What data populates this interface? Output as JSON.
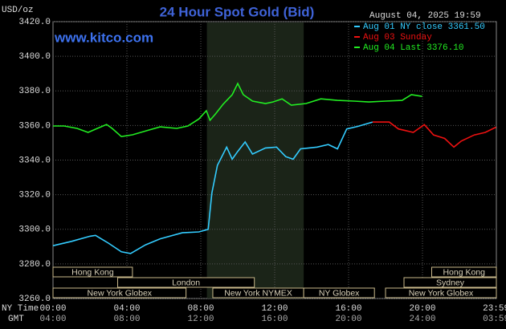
{
  "chart_data": {
    "type": "line",
    "title": "24 Hour Spot Gold (Bid)",
    "unit": "USD/oz",
    "timestamp": "August 04, 2025 19:59",
    "source": "www.kitco.com",
    "x_row_labels": [
      "NY Time",
      "GMT"
    ],
    "xlim": [
      0,
      24
    ],
    "xticks": [
      {
        "value": 0,
        "label": "00:00"
      },
      {
        "value": 4,
        "label": "04:00"
      },
      {
        "value": 8,
        "label": "08:00"
      },
      {
        "value": 12,
        "label": "12:00"
      },
      {
        "value": 16,
        "label": "16:00"
      },
      {
        "value": 20,
        "label": "20:00"
      },
      {
        "value": 23.983,
        "label": "23:59"
      }
    ],
    "gmt_ticks": [
      "04:00",
      "08:00",
      "12:00",
      "16:00",
      "20:00",
      "24:00",
      "03:59"
    ],
    "ylim": [
      3260,
      3420
    ],
    "yticks": [
      {
        "value": 3260,
        "label": "3260.0"
      },
      {
        "value": 3280,
        "label": "3280.0"
      },
      {
        "value": 3300,
        "label": "3300.0"
      },
      {
        "value": 3320,
        "label": "3320.0"
      },
      {
        "value": 3340,
        "label": "3340.0"
      },
      {
        "value": 3360,
        "label": "3360.0"
      },
      {
        "value": 3380,
        "label": "3380.0"
      },
      {
        "value": 3400,
        "label": "3400.0"
      },
      {
        "value": 3420,
        "label": "3420.0"
      }
    ],
    "grid": true,
    "highlight": [
      8.33,
      13.57
    ],
    "series": [
      {
        "name": "Aug 01 NY close 3361.50",
        "color": "#33ccff",
        "x": [
          0,
          1,
          2,
          2.3,
          3,
          3.7,
          4.2,
          5,
          5.8,
          7,
          7.9,
          8.4,
          8.6,
          8.9,
          9.4,
          9.7,
          10,
          10.4,
          10.8,
          11.5,
          12.1,
          12.6,
          13,
          13.4,
          14.3,
          14.9,
          15.4,
          15.9,
          16.5,
          17.3
        ],
        "values": [
          3290.5,
          3293,
          3296,
          3296.5,
          3292,
          3287,
          3286,
          3291,
          3294.5,
          3298,
          3298.5,
          3300,
          3321,
          3337,
          3347.5,
          3340.5,
          3345,
          3350.5,
          3343.5,
          3347,
          3347.5,
          3342,
          3340.5,
          3346.5,
          3347.5,
          3349,
          3346.5,
          3358,
          3359.5,
          3362
        ]
      },
      {
        "name": "Aug 03 Sunday",
        "color": "#ee1111",
        "x": [
          17.3,
          18.2,
          18.7,
          19.1,
          19.5,
          20.1,
          20.6,
          21.2,
          21.7,
          22.1,
          22.8,
          23.4,
          23.98
        ],
        "values": [
          3362,
          3362,
          3358,
          3357,
          3356,
          3360.5,
          3354.5,
          3352.5,
          3347.5,
          3351,
          3354.5,
          3356,
          3359
        ]
      },
      {
        "name": "Aug 04 Last 3376.10",
        "color": "#22ee22",
        "x": [
          0,
          0.6,
          1.3,
          1.9,
          2.4,
          2.9,
          3.2,
          3.7,
          4.3,
          5.2,
          5.8,
          6.7,
          7.3,
          7.9,
          8.3,
          8.5,
          8.8,
          9.2,
          9.7,
          10,
          10.3,
          10.8,
          11.5,
          11.9,
          12.4,
          12.9,
          13.7,
          14.5,
          15.4,
          16.3,
          17.1,
          18,
          18.9,
          19.4,
          19.98
        ],
        "values": [
          3359.7,
          3359.7,
          3358.3,
          3356,
          3358.3,
          3360.6,
          3358.3,
          3353.6,
          3354.6,
          3357.4,
          3359.2,
          3358.3,
          3359.7,
          3363.8,
          3368.5,
          3363,
          3366.7,
          3372.2,
          3377.8,
          3384.3,
          3377.8,
          3374.1,
          3372.7,
          3373.6,
          3375.4,
          3371.7,
          3372.7,
          3375.4,
          3374.5,
          3374.1,
          3373.6,
          3374.1,
          3374.5,
          3377.8,
          3376.8
        ]
      }
    ],
    "sessions": [
      {
        "name": "Hong Kong",
        "row": 0,
        "start": 0,
        "end": 4.3
      },
      {
        "name": "London",
        "row": 1,
        "start": 3.5,
        "end": 10.9
      },
      {
        "name": "New York Globex",
        "row": 2,
        "start": 0,
        "end": 7.2
      },
      {
        "name": "New York NYMEX",
        "row": 2,
        "start": 8.65,
        "end": 13.57
      },
      {
        "name": "NY Globex",
        "row": 2,
        "start": 13.57,
        "end": 17.4
      },
      {
        "name": "Hong Kong",
        "row": 0,
        "start": 20.5,
        "end": 24
      },
      {
        "name": "Sydney",
        "row": 1,
        "start": 19,
        "end": 24
      },
      {
        "name": "New York Globex",
        "row": 2,
        "start": 18,
        "end": 24
      }
    ]
  }
}
